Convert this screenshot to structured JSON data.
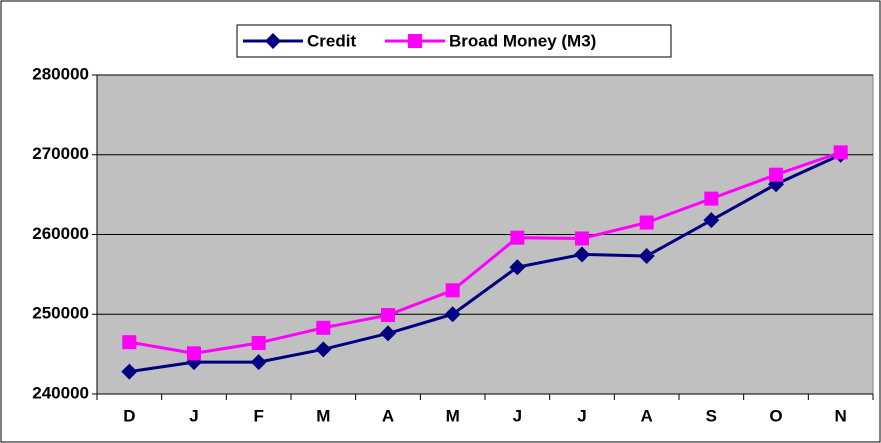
{
  "chart_data": {
    "type": "line",
    "categories": [
      "D",
      "J",
      "F",
      "M",
      "A",
      "M",
      "J",
      "J",
      "A",
      "S",
      "O",
      "N"
    ],
    "series": [
      {
        "name": "Credit",
        "color": "#000080",
        "marker": "diamond",
        "values": [
          242800,
          244000,
          244000,
          245600,
          247600,
          250000,
          255900,
          257500,
          257300,
          261800,
          266300,
          270000
        ]
      },
      {
        "name": "Broad Money (M3)",
        "color": "#FF00FF",
        "marker": "square",
        "values": [
          246500,
          245100,
          246400,
          248300,
          249900,
          253000,
          259600,
          259500,
          261500,
          264500,
          267500,
          270300
        ]
      }
    ],
    "ylim": [
      240000,
      280000
    ],
    "yticks": [
      240000,
      250000,
      260000,
      270000,
      280000
    ],
    "grid": true,
    "legend": "top"
  }
}
